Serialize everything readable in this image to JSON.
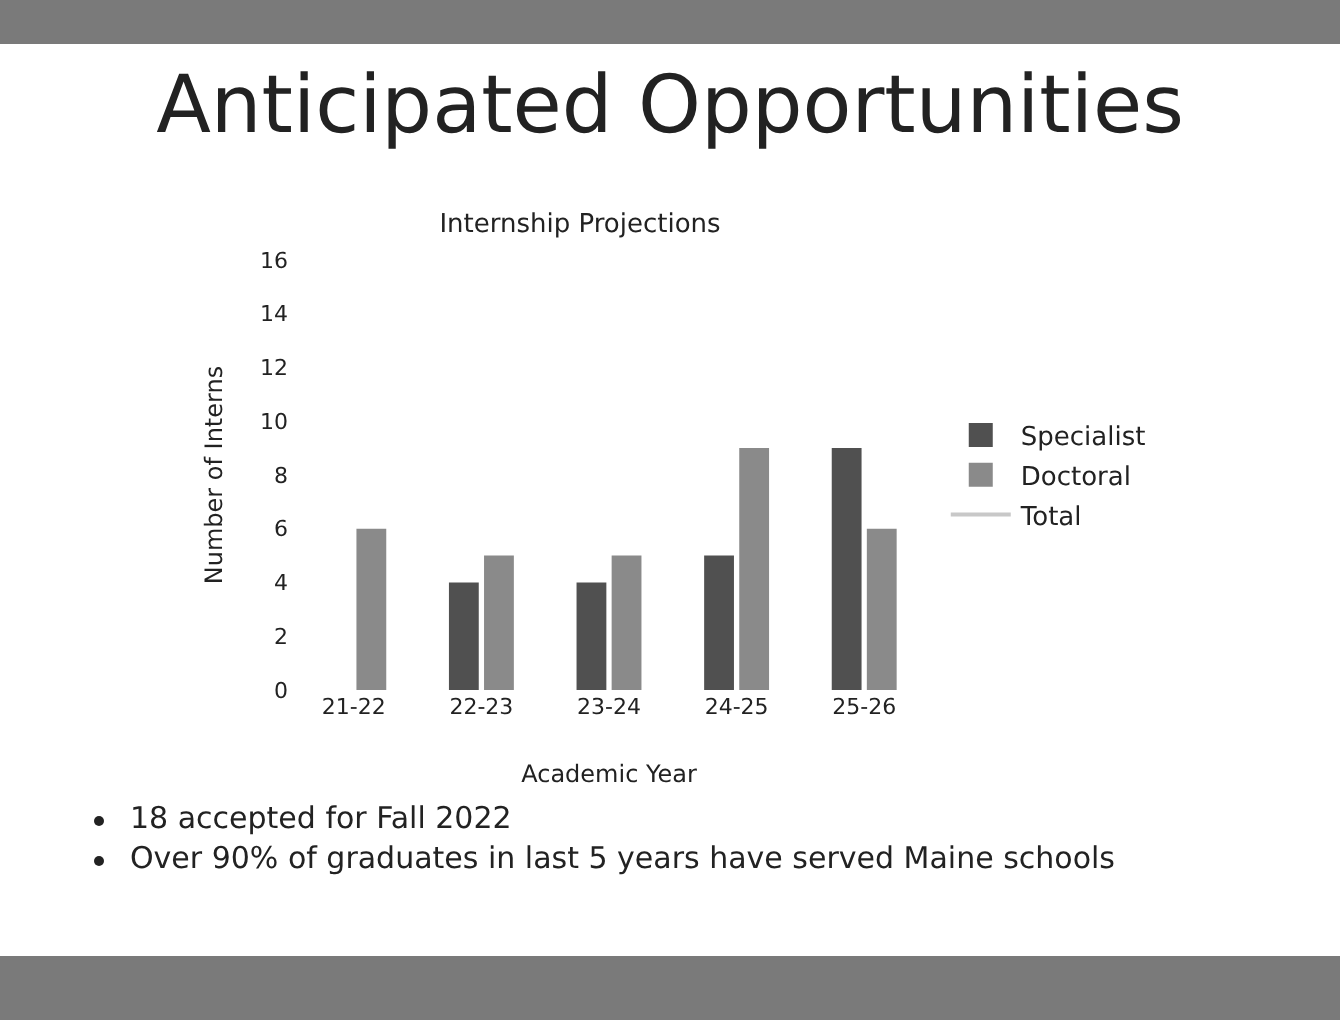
{
  "chart_data": {
    "type": "bar",
    "title": "Anticipated Opportunities",
    "subtitle": "Internship Projections",
    "xlabel": "Academic Year",
    "ylabel": "Number of Interns",
    "categories": [
      "21-22",
      "22-23",
      "23-24",
      "24-25",
      "25-26"
    ],
    "series": [
      {
        "name": "Specialist",
        "color": "#505050",
        "values": [
          null,
          4,
          4,
          5,
          9
        ]
      },
      {
        "name": "Doctoral",
        "color": "#8a8a8a",
        "values": [
          6,
          5,
          5,
          9,
          6
        ]
      },
      {
        "name": "Total",
        "type": "line",
        "color": "#c8c8c8",
        "values": [
          null,
          null,
          null,
          null,
          null
        ]
      }
    ],
    "ylim": [
      0,
      16
    ],
    "yticks": [
      0,
      2,
      4,
      6,
      8,
      10,
      12,
      14,
      16
    ],
    "grid": false,
    "legend": "right",
    "annotations": [
      "18 accepted for Fall 2022",
      "Over 90% of graduates in last 5 years have served Maine schools"
    ]
  }
}
